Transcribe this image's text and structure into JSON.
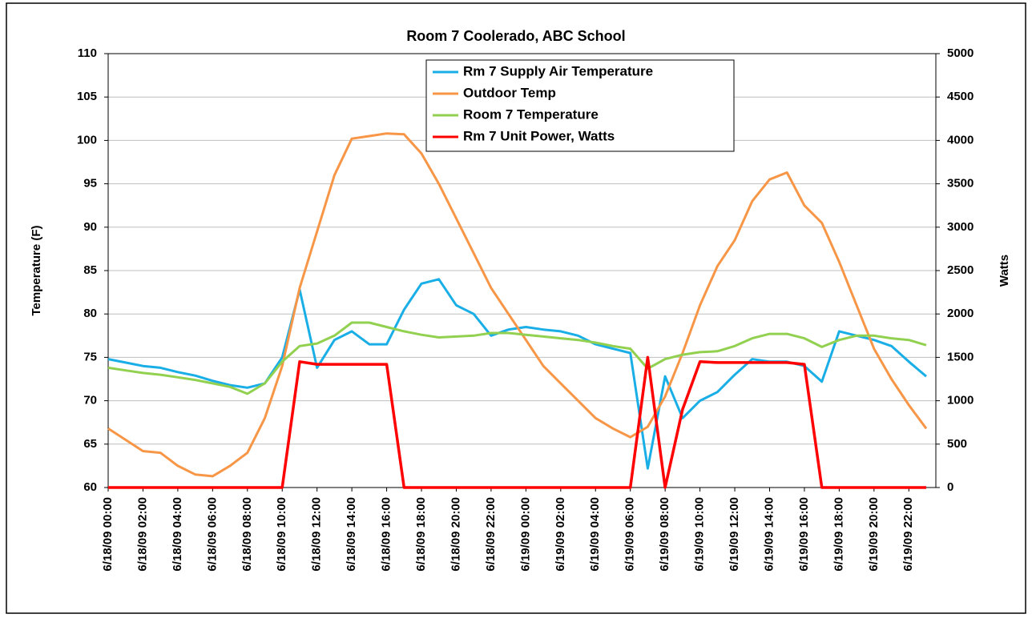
{
  "chart_data": {
    "type": "line",
    "title": "Room 7 Coolerado, ABC School",
    "ylabel": "Temperature (F)",
    "y2label": "Watts",
    "categories": [
      "6/18/09 00:00",
      null,
      "6/18/09 02:00",
      null,
      "6/18/09 04:00",
      null,
      "6/18/09 06:00",
      null,
      "6/18/09 08:00",
      null,
      "6/18/09 10:00",
      null,
      "6/18/09 12:00",
      null,
      "6/18/09 14:00",
      null,
      "6/18/09 16:00",
      null,
      "6/18/09 18:00",
      null,
      "6/18/09 20:00",
      null,
      "6/18/09 22:00",
      null,
      "6/19/09 00:00",
      null,
      "6/19/09 02:00",
      null,
      "6/19/09 04:00",
      null,
      "6/19/09 06:00",
      null,
      "6/19/09 08:00",
      null,
      "6/19/09 10:00",
      null,
      "6/19/09 12:00",
      null,
      "6/19/09 14:00",
      null,
      "6/19/09 16:00",
      null,
      "6/19/09 18:00",
      null,
      "6/19/09 20:00",
      null,
      "6/19/09 22:00",
      null
    ],
    "ylim": [
      60,
      110
    ],
    "yticks": [
      60,
      65,
      70,
      75,
      80,
      85,
      90,
      95,
      100,
      105,
      110
    ],
    "y2lim": [
      0,
      5000
    ],
    "y2ticks": [
      0,
      500,
      1000,
      1500,
      2000,
      2500,
      3000,
      3500,
      4000,
      4500,
      5000
    ],
    "grid": true,
    "legend": "top",
    "series": [
      {
        "name": "Rm 7 Supply Air Temperature",
        "color": "#1aaee6",
        "values": [
          74.8,
          74.4,
          74.0,
          73.8,
          73.3,
          72.9,
          72.3,
          71.8,
          71.5,
          72.0,
          75.0,
          82.8,
          73.8,
          77.0,
          78.0,
          76.5,
          76.5,
          80.5,
          83.5,
          84.0,
          81.0,
          80.0,
          77.5,
          78.2,
          78.5,
          78.2,
          78.0,
          77.5,
          76.5,
          76.0,
          75.5,
          62.2,
          72.8,
          68.0,
          70.0,
          71.0,
          73.0,
          74.8,
          74.5,
          74.5,
          74.0,
          72.2,
          78.0,
          77.5,
          77.0,
          76.3,
          74.5,
          72.8
        ]
      },
      {
        "name": "Outdoor Temp",
        "color": "#f79646",
        "values": [
          66.8,
          65.5,
          64.2,
          64.0,
          62.5,
          61.5,
          61.3,
          62.5,
          64.0,
          68.0,
          74.0,
          83.0,
          89.5,
          96.0,
          100.2,
          100.5,
          100.8,
          100.7,
          98.5,
          95.0,
          91.0,
          87.0,
          83.0,
          80.0,
          77.0,
          74.0,
          72.0,
          70.0,
          68.0,
          66.8,
          65.8,
          67.0,
          70.5,
          75.5,
          81.0,
          85.5,
          88.5,
          93.0,
          95.5,
          96.3,
          92.5,
          90.5,
          86.0,
          81.0,
          76.0,
          72.5,
          69.5,
          66.8
        ]
      },
      {
        "name": "Room 7 Temperature",
        "color": "#92d050",
        "values": [
          73.8,
          73.5,
          73.2,
          73.0,
          72.7,
          72.4,
          72.0,
          71.6,
          70.8,
          72.0,
          74.5,
          76.3,
          76.6,
          77.5,
          79.0,
          79.0,
          78.5,
          78.0,
          77.6,
          77.3,
          77.4,
          77.5,
          77.8,
          77.8,
          77.6,
          77.4,
          77.2,
          77.0,
          76.7,
          76.3,
          76.0,
          73.7,
          74.8,
          75.3,
          75.6,
          75.7,
          76.3,
          77.2,
          77.7,
          77.7,
          77.2,
          76.2,
          77.0,
          77.5,
          77.5,
          77.2,
          77.0,
          76.4
        ]
      },
      {
        "name": "Rm 7 Unit Power, Watts",
        "color": "#ff0000",
        "axis": "y2",
        "values": [
          0,
          0,
          0,
          0,
          0,
          0,
          0,
          0,
          0,
          0,
          0,
          1450,
          1420,
          1420,
          1420,
          1420,
          1420,
          0,
          0,
          0,
          0,
          0,
          0,
          0,
          0,
          0,
          0,
          0,
          0,
          0,
          0,
          1500,
          0,
          900,
          1450,
          1440,
          1440,
          1440,
          1440,
          1440,
          1420,
          0,
          0,
          0,
          0,
          0,
          0,
          0
        ]
      }
    ]
  }
}
